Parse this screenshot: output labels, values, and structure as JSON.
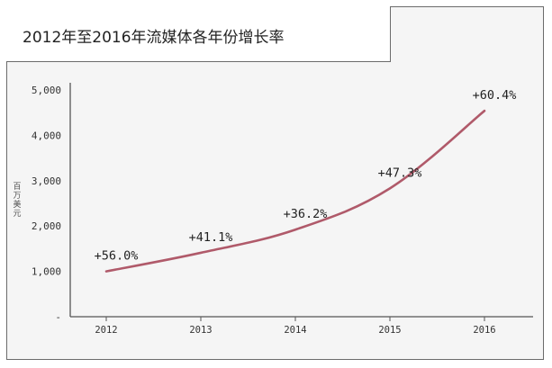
{
  "chart_data": {
    "type": "line",
    "title": "2012年至2016年流媒体各年份增长率",
    "ylabel": "百万美元",
    "xlabel": "",
    "categories": [
      "2012",
      "2013",
      "2014",
      "2015",
      "2016"
    ],
    "values": [
      1000,
      1410,
      1920,
      2830,
      4540
    ],
    "data_labels": [
      "+56.0%",
      "+41.1%",
      "+36.2%",
      "+47.3%",
      "+60.4%"
    ],
    "ylim": [
      0,
      5000
    ],
    "yticks": [
      0,
      1000,
      2000,
      3000,
      4000,
      5000
    ],
    "ytick_labels": [
      "-",
      "1,000",
      "2,000",
      "3,000",
      "4,000",
      "5,000"
    ],
    "grid": false,
    "colors": {
      "line": "#b05a6a",
      "axis": "#555555",
      "frame": "#6b6b6b"
    }
  }
}
